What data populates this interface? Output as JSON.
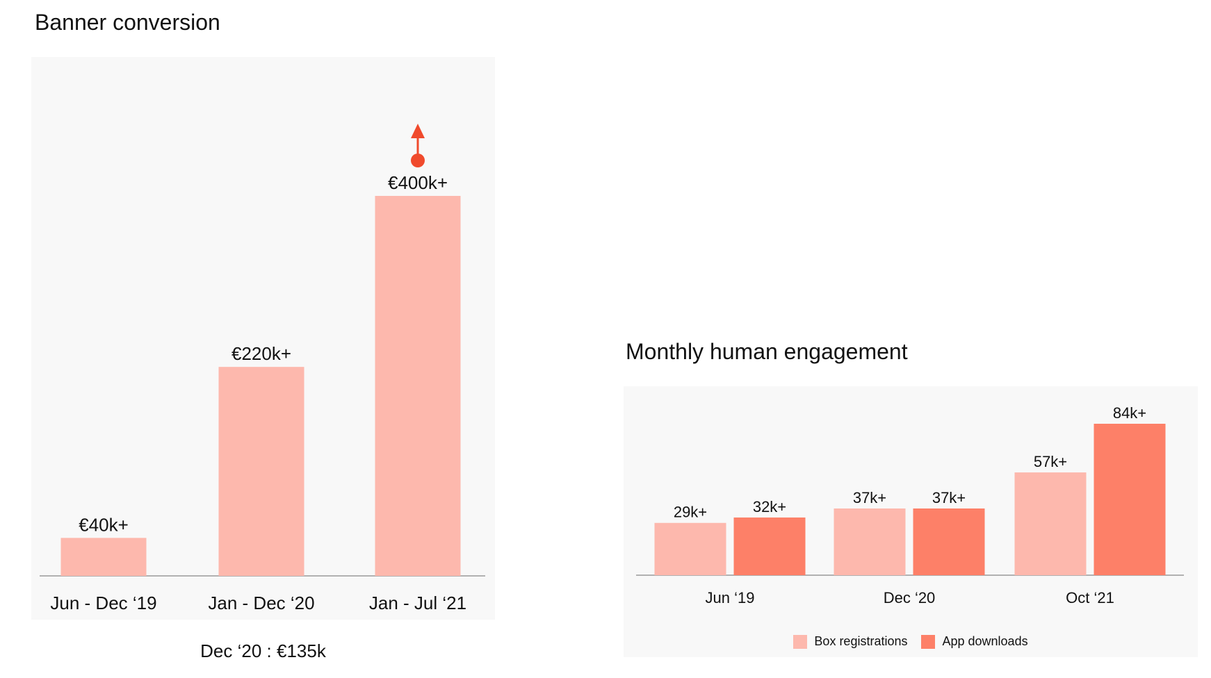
{
  "colors": {
    "light_bar": "#fdb8ad",
    "dark_bar": "#fd8068",
    "accent": "#f04a2c",
    "panel": "#f8f8f8",
    "axis": "#999999"
  },
  "chart_data": [
    {
      "type": "bar",
      "title": "Banner conversion",
      "categories": [
        "Jun - Dec ‘19",
        "Jan - Dec ‘20",
        "Jan - Jul ‘21"
      ],
      "values": [
        40,
        220,
        400
      ],
      "value_labels": [
        "€40k+",
        "€220k+",
        "€400k+"
      ],
      "unit": "€k",
      "ylim": [
        0,
        400
      ],
      "grid": false,
      "annotation": "Dec ‘20 : €135k",
      "trend_marker": "up-arrow-icon"
    },
    {
      "type": "bar",
      "title": "Monthly human engagement",
      "categories": [
        "Jun ‘19",
        "Dec ‘20",
        "Oct ‘21"
      ],
      "series": [
        {
          "name": "Box registrations",
          "values": [
            29,
            37,
            57
          ],
          "value_labels": [
            "29k+",
            "37k+",
            "57k+"
          ],
          "color": "#fdb8ad"
        },
        {
          "name": "App downloads",
          "values": [
            32,
            37,
            84
          ],
          "value_labels": [
            "32k+",
            "37k+",
            "84k+"
          ],
          "color": "#fd8068"
        }
      ],
      "ylim": [
        0,
        84
      ],
      "grid": false,
      "legend": "bottom"
    }
  ]
}
